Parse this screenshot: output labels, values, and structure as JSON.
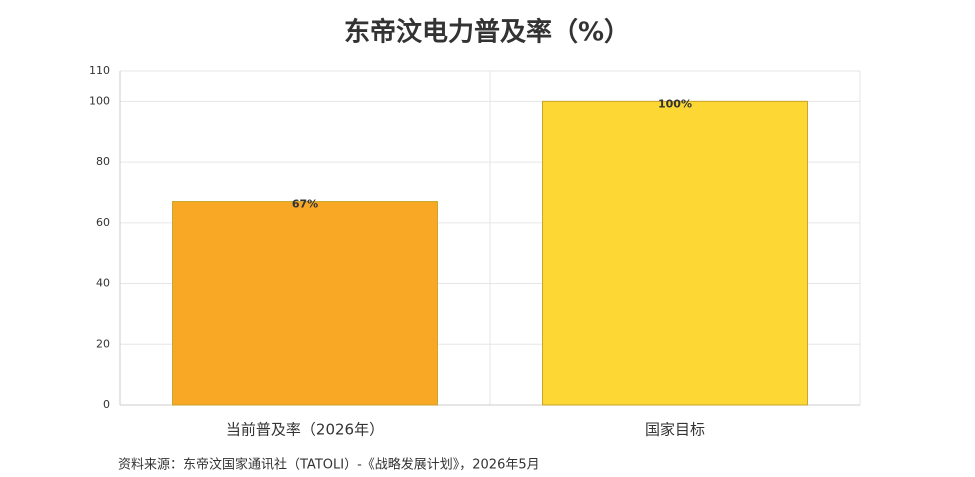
{
  "chart_data": {
    "type": "bar",
    "title": "东帝汶电力普及率（%）",
    "categories": [
      "当前普及率（2026年）",
      "国家目标"
    ],
    "values": [
      67,
      100
    ],
    "value_labels": [
      "67%",
      "100%"
    ],
    "colors": [
      "#f9a825",
      "#fdd835"
    ],
    "ylim": [
      0,
      110
    ],
    "yticks": [
      0,
      20,
      40,
      60,
      80,
      100,
      110
    ],
    "grid": true,
    "source": "资料来源：东帝汶国家通讯社（TATOLI）-《战略发展计划》，2026年5月"
  }
}
